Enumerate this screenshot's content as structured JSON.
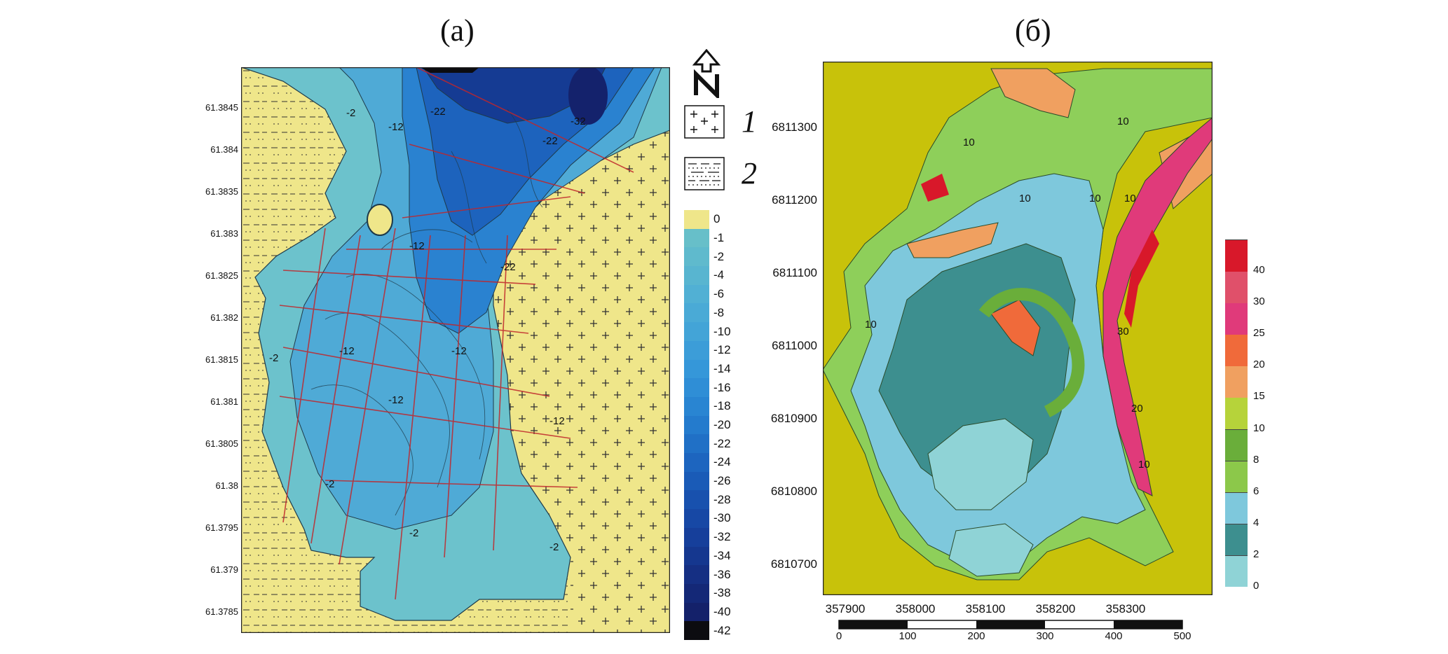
{
  "panel_a": {
    "title": "(а)",
    "y_ticks": [
      "61.3845",
      "61.384",
      "61.3835",
      "61.383",
      "61.3825",
      "61.382",
      "61.3815",
      "61.381",
      "61.3805",
      "61.38",
      "61.3795",
      "61.379",
      "61.3785"
    ],
    "contour_labels": [
      "-2",
      "-12",
      "-22",
      "-32",
      "-22",
      "-12",
      "-22",
      "-12",
      "-12",
      "-2",
      "-12",
      "-12",
      "-2",
      "-2",
      "-2"
    ],
    "legend": {
      "item1_number": "1",
      "item2_number": "2"
    },
    "colorbar": {
      "labels": [
        "0",
        "-1",
        "-2",
        "-4",
        "-6",
        "-8",
        "-10",
        "-12",
        "-14",
        "-16",
        "-18",
        "-20",
        "-22",
        "-24",
        "-26",
        "-28",
        "-30",
        "-32",
        "-34",
        "-36",
        "-38",
        "-40",
        "-42"
      ],
      "colors": [
        "#efe68a",
        "#67bfc9",
        "#5fbacd",
        "#58b5d0",
        "#51b0d4",
        "#4aaad6",
        "#43a4d7",
        "#3c9dd8",
        "#3597d9",
        "#2f8ed6",
        "#2985d2",
        "#247bcd",
        "#2070c6",
        "#1d65bf",
        "#1a5bb7",
        "#1851ae",
        "#1748a5",
        "#163f9b",
        "#15378f",
        "#152f83",
        "#142877",
        "#14216a",
        "#0c0c10"
      ]
    }
  },
  "panel_b": {
    "title": "(б)",
    "y_ticks": [
      "6811300",
      "6811200",
      "6811100",
      "6811000",
      "6810900",
      "6810800",
      "6810700"
    ],
    "x_ticks": [
      "357900",
      "358000",
      "358100",
      "358200",
      "358300"
    ],
    "contour_labels": [
      "10",
      "10",
      "10",
      "10",
      "10",
      "10",
      "30",
      "20",
      "10"
    ],
    "colorbar": {
      "labels": [
        "0",
        "2",
        "4",
        "6",
        "8",
        "10",
        "15",
        "20",
        "25",
        "30",
        "40"
      ],
      "colors": [
        "#8fd3d6",
        "#3d8f8f",
        "#7ec8dc",
        "#8cc84a",
        "#6aae3a",
        "#b6d33a",
        "#f0a060",
        "#f06a3a",
        "#e03a7a",
        "#e0506a",
        "#d8182a"
      ]
    },
    "scale_bar": {
      "labels": [
        "0",
        "100",
        "200",
        "300",
        "400",
        "500"
      ]
    }
  }
}
